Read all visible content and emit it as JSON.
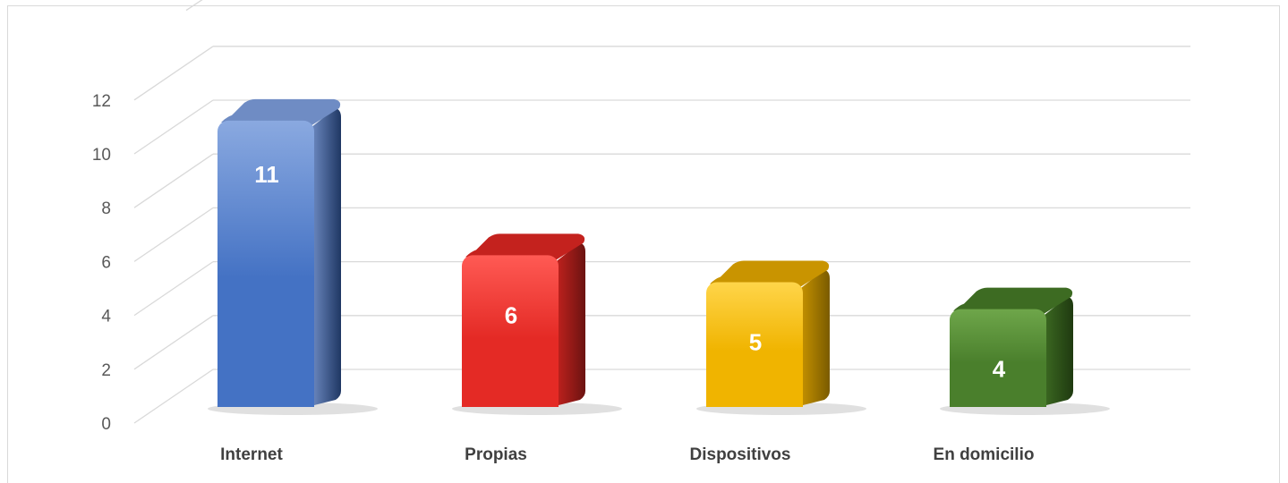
{
  "chart_data": {
    "type": "bar",
    "categories": [
      "Internet",
      "Propias",
      "Dispositivos",
      "En domicilio"
    ],
    "values": [
      11,
      6,
      5,
      4
    ],
    "data_labels": [
      "11",
      "6",
      "5",
      "4"
    ],
    "yticks": [
      "0",
      "2",
      "4",
      "6",
      "8",
      "10",
      "12"
    ],
    "ylim": [
      0,
      12
    ],
    "grid": true,
    "legend": "none",
    "style": "3d-column",
    "colors": [
      {
        "light": "#8aa9e0",
        "main": "#4472c4",
        "dark": "#1f3763",
        "top": "#6f8cc4"
      },
      {
        "light": "#ff5a54",
        "main": "#e42a25",
        "dark": "#6b1311",
        "top": "#c4221e"
      },
      {
        "light": "#ffd54a",
        "main": "#f0b400",
        "dark": "#7a5b00",
        "top": "#c99400"
      },
      {
        "light": "#6ea64a",
        "main": "#4a7f2c",
        "dark": "#1f3a10",
        "top": "#3d6b22"
      }
    ]
  }
}
